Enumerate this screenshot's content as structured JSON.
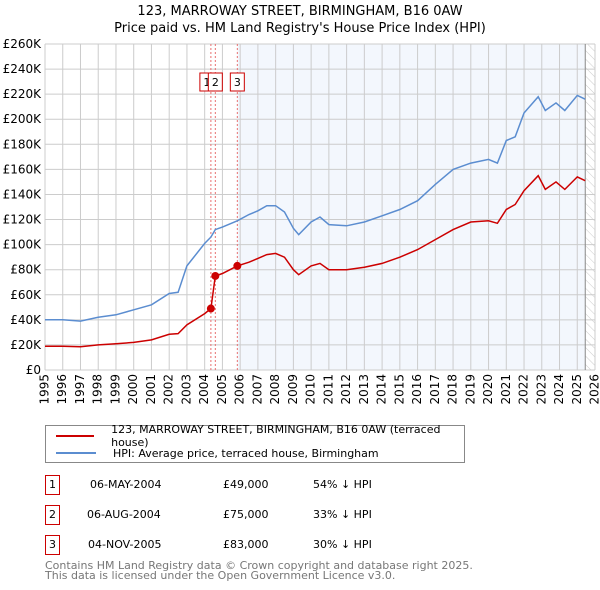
{
  "title": "123, MARROWAY STREET, BIRMINGHAM, B16 0AW",
  "subtitle": "Price paid vs. HM Land Registry's House Price Index (HPI)",
  "chart_data": {
    "type": "line",
    "title": "123, MARROWAY STREET, BIRMINGHAM, B16 0AW — Price paid vs. HM Land Registry's House Price Index (HPI)",
    "xlim": [
      1995,
      2026
    ],
    "ylim": [
      0,
      260000
    ],
    "x_ticks": [
      "1995",
      "1996",
      "1997",
      "1998",
      "1999",
      "2000",
      "2001",
      "2002",
      "2003",
      "2004",
      "2005",
      "2006",
      "2007",
      "2008",
      "2009",
      "2010",
      "2011",
      "2012",
      "2013",
      "2014",
      "2015",
      "2016",
      "2017",
      "2018",
      "2019",
      "2020",
      "2021",
      "2022",
      "2023",
      "2024",
      "2025",
      "2026"
    ],
    "y_ticks": [
      "£0",
      "£20K",
      "£40K",
      "£60K",
      "£80K",
      "£100K",
      "£120K",
      "£140K",
      "£160K",
      "£180K",
      "£200K",
      "£220K",
      "£240K",
      "£260K"
    ],
    "grid": true,
    "series": [
      {
        "name": "123, MARROWAY STREET, BIRMINGHAM, B16 0AW (terraced house)",
        "color": "#cc0000",
        "x": [
          1995,
          1996,
          1997,
          1998,
          1999,
          2000,
          2001,
          2002,
          2002.5,
          2003,
          2004,
          2004.35,
          2004.6,
          2005,
          2005.84,
          2006.5,
          2007,
          2007.5,
          2008,
          2008.5,
          2009,
          2009.3,
          2010,
          2010.5,
          2011,
          2012,
          2013,
          2014,
          2015,
          2016,
          2017,
          2018,
          2019,
          2020,
          2020.5,
          2021,
          2021.5,
          2022,
          2022.8,
          2023.2,
          2023.8,
          2024.3,
          2025,
          2025.45
        ],
        "y": [
          19000,
          19000,
          18500,
          20000,
          21000,
          22000,
          24000,
          28500,
          29000,
          36000,
          45000,
          49000,
          75000,
          77000,
          83000,
          86000,
          89000,
          92000,
          93000,
          90000,
          80000,
          76000,
          83000,
          85000,
          80000,
          80000,
          82000,
          85000,
          90000,
          96000,
          104000,
          112000,
          118000,
          119000,
          117000,
          128000,
          132000,
          143000,
          155000,
          144000,
          150000,
          144000,
          154000,
          151000
        ]
      },
      {
        "name": "HPI: Average price, terraced house, Birmingham",
        "color": "#5b8dd0",
        "x": [
          1995,
          1996,
          1997,
          1998,
          1999,
          2000,
          2001,
          2002,
          2002.5,
          2003,
          2004,
          2004.35,
          2004.6,
          2005,
          2005.84,
          2006.5,
          2007,
          2007.5,
          2008,
          2008.5,
          2009,
          2009.3,
          2010,
          2010.5,
          2011,
          2012,
          2013,
          2014,
          2015,
          2016,
          2017,
          2018,
          2019,
          2020,
          2020.5,
          2021,
          2021.5,
          2022,
          2022.8,
          2023.2,
          2023.8,
          2024.3,
          2025,
          2025.45
        ],
        "y": [
          40000,
          40000,
          39000,
          42000,
          44000,
          48000,
          52000,
          61000,
          62000,
          83000,
          101000,
          106000,
          112000,
          114000,
          119000,
          124000,
          127000,
          131000,
          131000,
          126000,
          113000,
          108000,
          118000,
          122000,
          116000,
          115000,
          118000,
          123000,
          128000,
          135000,
          148000,
          160000,
          165000,
          168000,
          165000,
          183000,
          186000,
          205000,
          218000,
          207000,
          213000,
          207000,
          219000,
          216000
        ]
      }
    ],
    "sales": [
      {
        "label": "1",
        "date": "06-MAY-2004",
        "x": 2004.35,
        "price": "£49,000",
        "value": 49000,
        "hpi": "54% ↓ HPI"
      },
      {
        "label": "2",
        "date": "06-AUG-2004",
        "x": 2004.6,
        "price": "£75,000",
        "value": 75000,
        "hpi": "33% ↓ HPI"
      },
      {
        "label": "3",
        "date": "04-NOV-2005",
        "x": 2005.84,
        "price": "£83,000",
        "value": 83000,
        "hpi": "30% ↓ HPI"
      }
    ],
    "legend_placement": "below"
  },
  "footer": [
    "Contains HM Land Registry data © Crown copyright and database right 2025.",
    "This data is licensed under the Open Government Licence v3.0."
  ]
}
